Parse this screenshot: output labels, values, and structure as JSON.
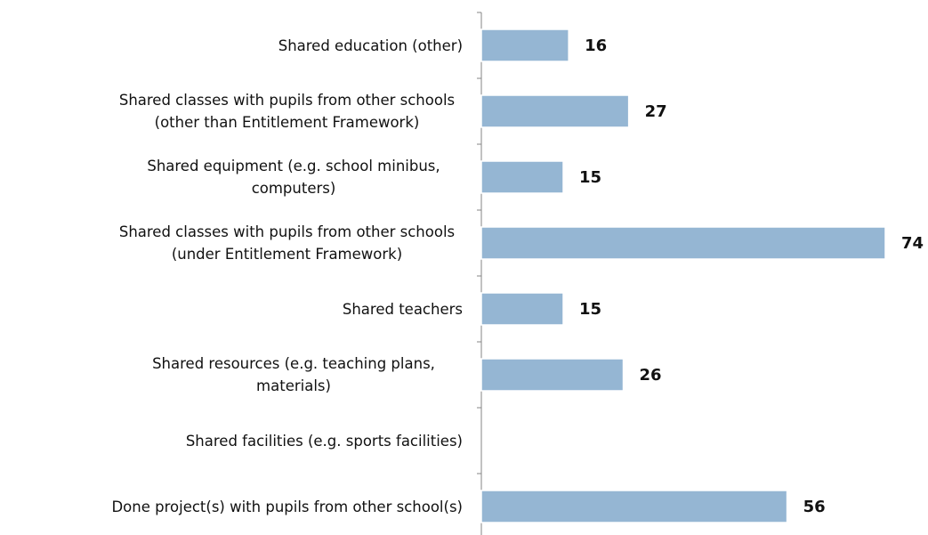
{
  "chart_data": {
    "type": "bar",
    "orientation": "horizontal",
    "categories": [
      "Shared education (other)",
      "Shared classes with pupils from other schools (other than Entitlement Framework)",
      "Shared equipment (e.g. school minibus, computers)",
      "Shared classes with pupils from other schools (under Entitlement Framework)",
      "Shared teachers",
      "Shared resources (e.g. teaching plans, materials)",
      "Shared facilities (e.g. sports facilities)",
      "Done project(s) with pupils from other school(s)"
    ],
    "values": [
      16,
      27,
      15,
      74,
      15,
      26,
      null,
      56
    ],
    "color": "#95b6d3"
  }
}
